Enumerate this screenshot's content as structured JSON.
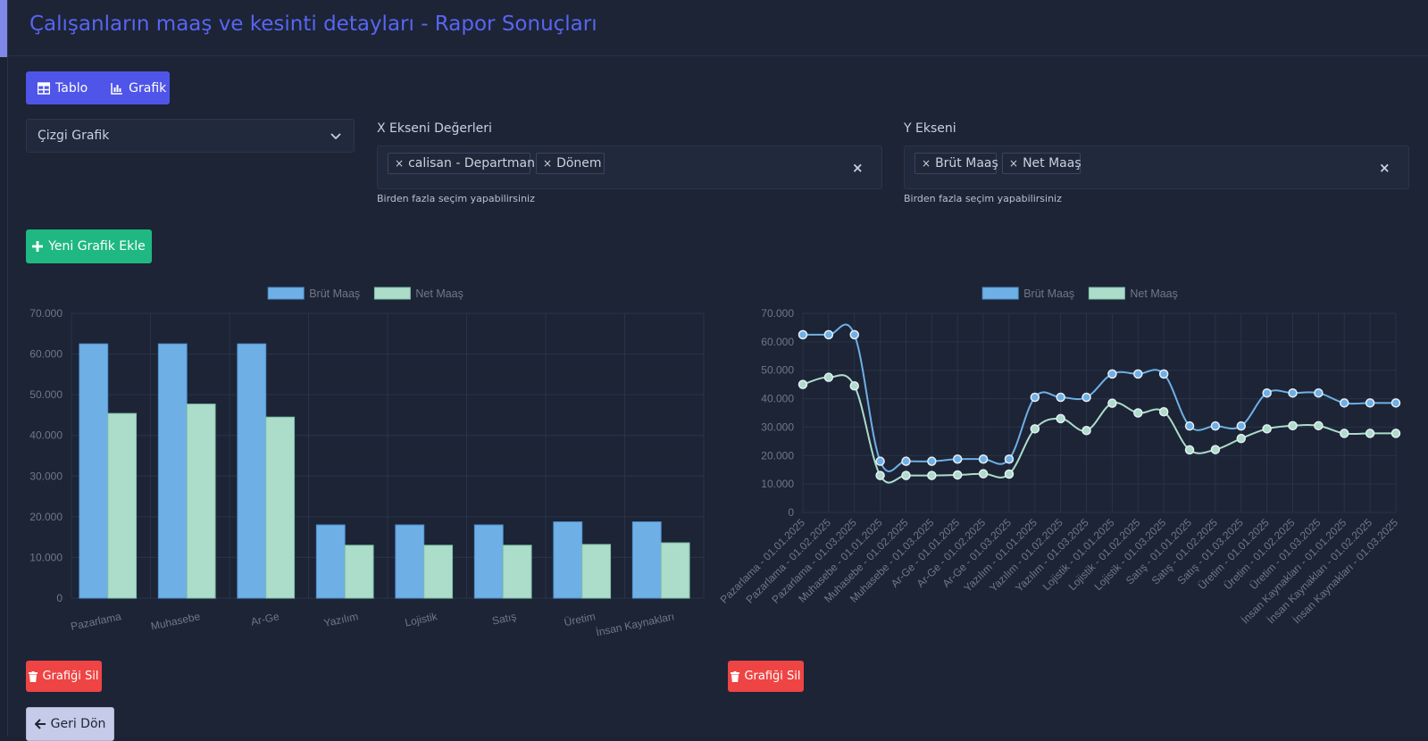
{
  "page": {
    "title": "Çalışanların maaş ve kesinti detayları - Rapor Sonuçları"
  },
  "view_toggle": {
    "table_label": "Tablo",
    "chart_label": "Grafik"
  },
  "chart_type_select": {
    "value": "Çizgi Grafik"
  },
  "x_axis": {
    "label": "X Ekseni Değerleri",
    "tags": [
      "calisan - Departman",
      "Dönem"
    ],
    "hint": "Birden fazla seçim yapabilirsiniz"
  },
  "y_axis": {
    "label": "Y Ekseni",
    "tags": [
      "Brüt Maaş",
      "Net Maaş"
    ],
    "hint": "Birden fazla seçim yapabilirsiniz"
  },
  "buttons": {
    "add_chart": "Yeni Grafik Ekle",
    "delete_chart": "Grafiği Sil",
    "back": "Geri Dön"
  },
  "colors": {
    "brut": "#6eb0e6",
    "net": "#acdcca",
    "accent": "#4f55e8",
    "green": "#1fb882",
    "red": "#ef4444"
  },
  "chart_data": [
    {
      "type": "bar",
      "categories": [
        "Pazarlama",
        "Muhasebe",
        "Ar-Ge",
        "Yazılım",
        "Lojistik",
        "Satış",
        "Üretim",
        "İnsan Kaynakları"
      ],
      "series": [
        {
          "name": "Brüt Maaş",
          "values": [
            62500,
            62500,
            62500,
            18000,
            18000,
            18000,
            18750,
            18750
          ]
        },
        {
          "name": "Net Maaş",
          "values": [
            45400,
            47700,
            44500,
            13000,
            13000,
            13000,
            13200,
            13600
          ]
        }
      ],
      "ylim": [
        0,
        70000
      ],
      "yticks": [
        "0",
        "10.000",
        "20.000",
        "30.000",
        "40.000",
        "50.000",
        "60.000",
        "70.000"
      ],
      "legend": "top",
      "grid": true
    },
    {
      "type": "line",
      "categories": [
        "Pazarlama - 01.01.2025",
        "Pazarlama - 01.02.2025",
        "Pazarlama - 01.03.2025",
        "Muhasebe - 01.01.2025",
        "Muhasebe - 01.02.2025",
        "Muhasebe - 01.03.2025",
        "Ar-Ge - 01.01.2025",
        "Ar-Ge - 01.02.2025",
        "Ar-Ge - 01.03.2025",
        "Yazılım - 01.01.2025",
        "Yazılım - 01.02.2025",
        "Yazılım - 01.03.2025",
        "Lojistik - 01.01.2025",
        "Lojistik - 01.02.2025",
        "Lojistik - 01.03.2025",
        "Satış - 01.01.2025",
        "Satış - 01.02.2025",
        "Satış - 01.03.2025",
        "Üretim - 01.01.2025",
        "Üretim - 01.02.2025",
        "Üretim - 01.03.2025",
        "İnsan Kaynakları - 01.01.2025",
        "İnsan Kaynakları - 01.02.2025",
        "İnsan Kaynakları - 01.03.2025"
      ],
      "series": [
        {
          "name": "Brüt Maaş",
          "values": [
            62500,
            62500,
            62500,
            18000,
            18000,
            18000,
            18750,
            18750,
            18750,
            40500,
            40500,
            40500,
            48700,
            48700,
            48700,
            30400,
            30400,
            30400,
            42000,
            42000,
            42000,
            38500,
            38500,
            38500
          ]
        },
        {
          "name": "Net Maaş",
          "values": [
            45000,
            47500,
            44500,
            13000,
            13000,
            13000,
            13200,
            13600,
            13500,
            29400,
            33000,
            28800,
            38400,
            35000,
            35400,
            22000,
            22100,
            26000,
            29400,
            30500,
            30500,
            27800,
            27800,
            27800
          ]
        }
      ],
      "ylim": [
        0,
        70000
      ],
      "yticks": [
        "0",
        "10.000",
        "20.000",
        "30.000",
        "40.000",
        "50.000",
        "60.000",
        "70.000"
      ],
      "legend": "top",
      "grid": true
    }
  ]
}
